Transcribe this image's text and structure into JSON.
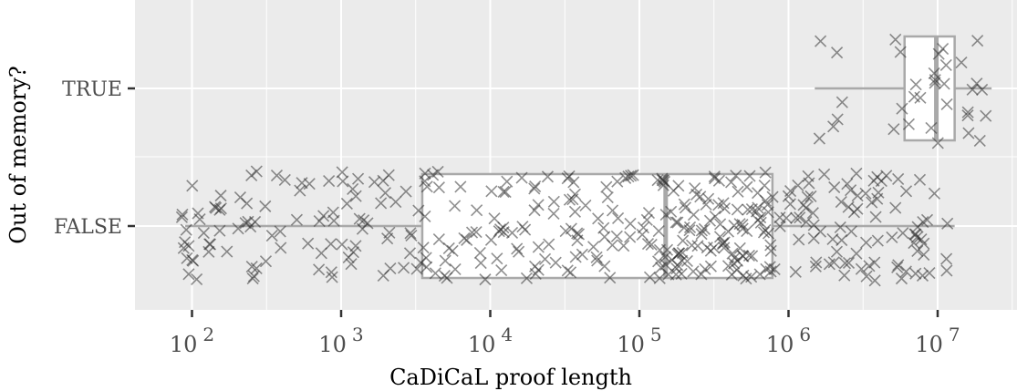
{
  "chart_data": {
    "type": "boxplot-jitter",
    "title": "",
    "xlabel": "CaDiCaL proof length",
    "ylabel": "Out of memory?",
    "x_scale": "log10",
    "xlim": [
      60,
      12000000
    ],
    "x_ticks": [
      {
        "value": 100,
        "base": "10",
        "exp": "2"
      },
      {
        "value": 1000,
        "base": "10",
        "exp": "3"
      },
      {
        "value": 10000,
        "base": "10",
        "exp": "4"
      },
      {
        "value": 100000,
        "base": "10",
        "exp": "5"
      },
      {
        "value": 1000000,
        "base": "10",
        "exp": "6"
      },
      {
        "value": 10000000,
        "base": "10",
        "exp": "7"
      }
    ],
    "categories": [
      "FALSE",
      "TRUE"
    ],
    "grid": true,
    "boxes": [
      {
        "category": "FALSE",
        "whisker_low": 90,
        "q1": 3500,
        "median": 150000,
        "q3": 780000,
        "whisker_high": 13000000
      },
      {
        "category": "TRUE",
        "whisker_low": 1500000,
        "q1": 6000000,
        "median": 9800000,
        "q3": 13000000,
        "whisker_high": 23000000
      }
    ],
    "colors": {
      "panel": "#ebebeb",
      "grid_major": "#ffffff",
      "box_line": "#a9a9a9",
      "box_fill": "#ffffff",
      "point": "#333333"
    }
  }
}
